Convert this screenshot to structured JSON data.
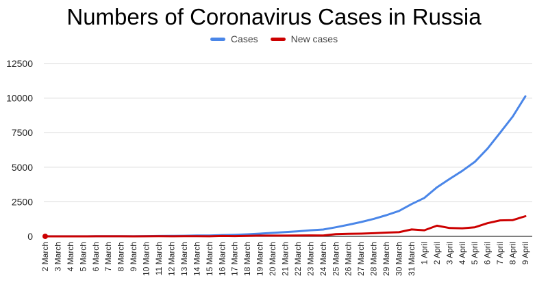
{
  "chart_data": {
    "type": "line",
    "title": "Numbers of Coronavirus Cases in Russia",
    "xlabel": "",
    "ylabel": "",
    "x": [
      "2 March",
      "3 March",
      "4 March",
      "5 March",
      "6 March",
      "7 March",
      "8 March",
      "9 March",
      "10 March",
      "11 March",
      "12 March",
      "13 March",
      "14 March",
      "15 March",
      "16 March",
      "17 March",
      "18 March",
      "19 March",
      "20 March",
      "21 March",
      "22 March",
      "23 March",
      "24 March",
      "25 March",
      "26 March",
      "27 March",
      "28 March",
      "29 March",
      "30 March",
      "31 March",
      "1 April",
      "2 April",
      "3 April",
      "4 April",
      "5 April",
      "6 April",
      "7 April",
      "8 April",
      "9 April"
    ],
    "ylim": [
      0,
      12500
    ],
    "yticks": [
      "0",
      "2500",
      "5000",
      "7500",
      "10000",
      "12500"
    ],
    "ytick_values": [
      0,
      2500,
      5000,
      7500,
      10000,
      12500
    ],
    "grid": true,
    "legend_position": "top",
    "series": [
      {
        "name": "Cases",
        "color": "#4a86e8",
        "values": [
          3,
          3,
          3,
          4,
          10,
          14,
          17,
          17,
          20,
          28,
          34,
          45,
          59,
          63,
          93,
          114,
          147,
          199,
          253,
          306,
          367,
          438,
          495,
          658,
          840,
          1036,
          1264,
          1534,
          1836,
          2337,
          2777,
          3548,
          4149,
          4731,
          5389,
          6343,
          7497,
          8672,
          10131
        ]
      },
      {
        "name": "New cases",
        "color": "#cc0000",
        "values": [
          1,
          0,
          0,
          1,
          6,
          4,
          3,
          0,
          3,
          8,
          6,
          11,
          14,
          4,
          30,
          21,
          33,
          52,
          54,
          53,
          61,
          71,
          57,
          163,
          182,
          196,
          228,
          270,
          302,
          501,
          440,
          771,
          601,
          582,
          658,
          954,
          1154,
          1175,
          1459
        ]
      }
    ]
  }
}
